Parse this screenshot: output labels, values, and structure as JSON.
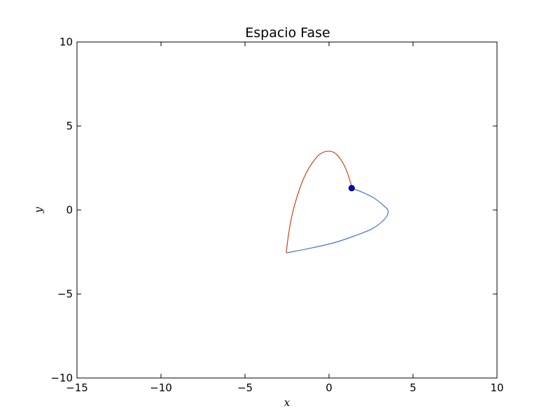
{
  "chart_data": {
    "type": "line",
    "title": "Espacio Fase",
    "xlabel": "x",
    "ylabel": "y",
    "xlim": [
      -15,
      10
    ],
    "ylim": [
      -10,
      10
    ],
    "xticks": [
      -15,
      -10,
      -5,
      0,
      5,
      10
    ],
    "yticks": [
      -10,
      -5,
      0,
      5,
      10
    ],
    "xtick_labels": [
      "−15",
      "−10",
      "−5",
      "0",
      "5",
      "10"
    ],
    "ytick_labels": [
      "−10",
      "−5",
      "0",
      "5",
      "10"
    ],
    "grid": false,
    "series": [
      {
        "color": "#cc3300",
        "points": [
          [
            -2.55,
            -2.55
          ],
          [
            -2.4,
            -1.4
          ],
          [
            -2.2,
            -0.3
          ],
          [
            -1.9,
            0.8
          ],
          [
            -1.5,
            1.9
          ],
          [
            -1.0,
            2.8
          ],
          [
            -0.5,
            3.35
          ],
          [
            0.0,
            3.5
          ],
          [
            0.4,
            3.35
          ],
          [
            0.8,
            2.85
          ],
          [
            1.1,
            2.2
          ],
          [
            1.3,
            1.55
          ],
          [
            1.35,
            1.3
          ]
        ]
      },
      {
        "color": "#3366cc",
        "points": [
          [
            1.35,
            1.3
          ],
          [
            2.0,
            1.05
          ],
          [
            2.7,
            0.7
          ],
          [
            3.2,
            0.3
          ],
          [
            3.5,
            0.0
          ],
          [
            3.45,
            -0.35
          ],
          [
            3.1,
            -0.75
          ],
          [
            2.5,
            -1.15
          ],
          [
            1.5,
            -1.55
          ],
          [
            0.3,
            -1.95
          ],
          [
            -1.0,
            -2.25
          ],
          [
            -2.0,
            -2.45
          ],
          [
            -2.55,
            -2.55
          ]
        ]
      }
    ],
    "marker": {
      "point": [
        1.35,
        1.3
      ],
      "color": "#0000ff"
    }
  }
}
